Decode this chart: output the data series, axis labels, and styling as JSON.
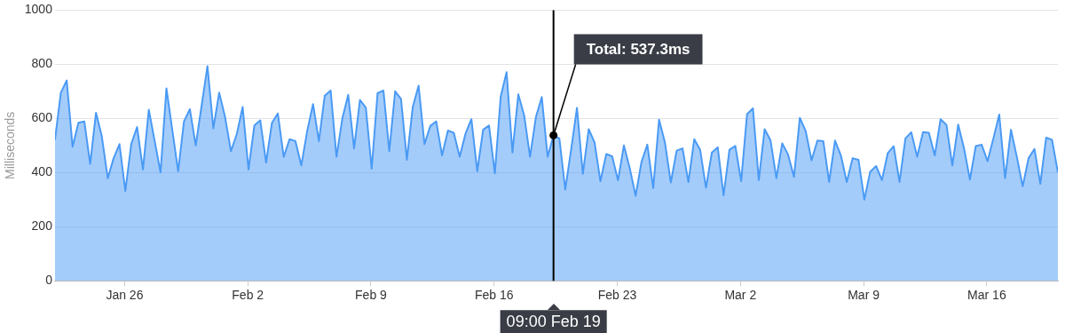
{
  "chart_data": {
    "type": "area",
    "ylabel": "Milliseconds",
    "ylim": [
      0,
      1000
    ],
    "yticks": [
      0,
      200,
      400,
      600,
      800,
      1000
    ],
    "xlim": [
      "--01-22T01:00",
      "--03-20T01:00"
    ],
    "xticks": [
      {
        "value": "--01-26",
        "label": "Jan 26"
      },
      {
        "value": "--02-02",
        "label": "Feb 2"
      },
      {
        "value": "--02-09",
        "label": "Feb 9"
      },
      {
        "value": "--02-16",
        "label": "Feb 16"
      },
      {
        "value": "--02-23",
        "label": "Feb 23"
      },
      {
        "value": "--03-02",
        "label": "Mar 2"
      },
      {
        "value": "--03-09",
        "label": "Mar 9"
      },
      {
        "value": "--03-16",
        "label": "Mar 16"
      }
    ],
    "grid": "y",
    "legend": false,
    "marker": "none",
    "ref_lines": [
      {
        "axis": "x",
        "value": "--02-19T09:00",
        "color": "#000000"
      }
    ],
    "annotations": [
      {
        "text": "Total: 537.3ms",
        "x": "--02-19T09:00",
        "y": 537.3
      },
      "09:00 Feb 19"
    ],
    "series": [
      {
        "color": "#4a9af5",
        "x": [
          "--01-22T01:00",
          "--01-22T09:00",
          "--01-22T17:00",
          "--01-23T01:00",
          "--01-23T09:00",
          "--01-23T17:00",
          "--01-24T01:00",
          "--01-24T09:00",
          "--01-24T17:00",
          "--01-25T01:00",
          "--01-25T09:00",
          "--01-25T17:00",
          "--01-26T01:00",
          "--01-26T09:00",
          "--01-26T17:00",
          "--01-27T01:00",
          "--01-27T09:00",
          "--01-27T17:00",
          "--01-28T01:00",
          "--01-28T09:00",
          "--01-28T17:00",
          "--01-29T01:00",
          "--01-29T09:00",
          "--01-29T17:00",
          "--01-30T01:00",
          "--01-30T09:00",
          "--01-30T17:00",
          "--01-31T01:00",
          "--01-31T09:00",
          "--01-31T17:00",
          "--02-01T01:00",
          "--02-01T09:00",
          "--02-01T17:00",
          "--02-02T01:00",
          "--02-02T09:00",
          "--02-02T17:00",
          "--02-03T01:00",
          "--02-03T09:00",
          "--02-03T17:00",
          "--02-04T01:00",
          "--02-04T09:00",
          "--02-04T17:00",
          "--02-05T01:00",
          "--02-05T09:00",
          "--02-05T17:00",
          "--02-06T01:00",
          "--02-06T09:00",
          "--02-06T17:00",
          "--02-07T01:00",
          "--02-07T09:00",
          "--02-07T17:00",
          "--02-08T01:00",
          "--02-08T09:00",
          "--02-08T17:00",
          "--02-09T01:00",
          "--02-09T09:00",
          "--02-09T17:00",
          "--02-10T01:00",
          "--02-10T09:00",
          "--02-10T17:00",
          "--02-11T01:00",
          "--02-11T09:00",
          "--02-11T17:00",
          "--02-12T01:00",
          "--02-12T09:00",
          "--02-12T17:00",
          "--02-13T01:00",
          "--02-13T09:00",
          "--02-13T17:00",
          "--02-14T01:00",
          "--02-14T09:00",
          "--02-14T17:00",
          "--02-15T01:00",
          "--02-15T09:00",
          "--02-15T17:00",
          "--02-16T01:00",
          "--02-16T09:00",
          "--02-16T17:00",
          "--02-17T01:00",
          "--02-17T09:00",
          "--02-17T17:00",
          "--02-18T01:00",
          "--02-18T09:00",
          "--02-18T17:00",
          "--02-19T01:00",
          "--02-19T09:00",
          "--02-19T17:00",
          "--02-20T01:00",
          "--02-20T09:00",
          "--02-20T17:00",
          "--02-21T01:00",
          "--02-21T09:00",
          "--02-21T17:00",
          "--02-22T01:00",
          "--02-22T09:00",
          "--02-22T17:00",
          "--02-23T01:00",
          "--02-23T09:00",
          "--02-23T17:00",
          "--02-24T01:00",
          "--02-24T09:00",
          "--02-24T17:00",
          "--02-25T01:00",
          "--02-25T09:00",
          "--02-25T17:00",
          "--02-26T01:00",
          "--02-26T09:00",
          "--02-26T17:00",
          "--02-27T01:00",
          "--02-27T09:00",
          "--02-27T17:00",
          "--02-28T01:00",
          "--02-28T09:00",
          "--02-28T17:00",
          "--03-01T01:00",
          "--03-01T09:00",
          "--03-01T17:00",
          "--03-02T01:00",
          "--03-02T09:00",
          "--03-02T17:00",
          "--03-03T01:00",
          "--03-03T09:00",
          "--03-03T17:00",
          "--03-04T01:00",
          "--03-04T09:00",
          "--03-04T17:00",
          "--03-05T01:00",
          "--03-05T09:00",
          "--03-05T17:00",
          "--03-06T01:00",
          "--03-06T09:00",
          "--03-06T17:00",
          "--03-07T01:00",
          "--03-07T09:00",
          "--03-07T17:00",
          "--03-08T01:00",
          "--03-08T09:00",
          "--03-08T17:00",
          "--03-09T01:00",
          "--03-09T09:00",
          "--03-09T17:00",
          "--03-10T01:00",
          "--03-10T09:00",
          "--03-10T17:00",
          "--03-11T01:00",
          "--03-11T09:00",
          "--03-11T17:00",
          "--03-12T01:00",
          "--03-12T09:00",
          "--03-12T17:00",
          "--03-13T01:00",
          "--03-13T09:00",
          "--03-13T17:00",
          "--03-14T01:00",
          "--03-14T09:00",
          "--03-14T17:00",
          "--03-15T01:00",
          "--03-15T09:00",
          "--03-15T17:00",
          "--03-16T01:00",
          "--03-16T09:00",
          "--03-16T17:00",
          "--03-17T01:00",
          "--03-17T09:00",
          "--03-17T17:00",
          "--03-18T01:00",
          "--03-18T09:00",
          "--03-18T17:00",
          "--03-19T01:00",
          "--03-19T09:00",
          "--03-19T17:00",
          "--03-20T01:00"
        ],
        "values": [
          521,
          695,
          740,
          495,
          584,
          589,
          432,
          621,
          532,
          379,
          453,
          505,
          332,
          505,
          568,
          411,
          632,
          516,
          400,
          711,
          558,
          405,
          589,
          634,
          500,
          647,
          793,
          563,
          695,
          605,
          479,
          542,
          642,
          411,
          574,
          593,
          437,
          584,
          618,
          458,
          523,
          516,
          426,
          553,
          653,
          516,
          684,
          703,
          458,
          600,
          687,
          489,
          668,
          640,
          414,
          693,
          703,
          479,
          700,
          672,
          447,
          642,
          721,
          505,
          572,
          589,
          463,
          555,
          547,
          458,
          544,
          597,
          405,
          558,
          574,
          397,
          681,
          771,
          474,
          689,
          611,
          458,
          605,
          679,
          458,
          537.3,
          526,
          337,
          484,
          639,
          395,
          560,
          511,
          368,
          468,
          460,
          371,
          500,
          416,
          314,
          439,
          503,
          342,
          595,
          511,
          363,
          481,
          489,
          365,
          523,
          484,
          344,
          474,
          493,
          316,
          484,
          498,
          368,
          616,
          637,
          372,
          560,
          519,
          379,
          508,
          466,
          384,
          602,
          553,
          445,
          518,
          516,
          365,
          518,
          463,
          365,
          453,
          447,
          300,
          403,
          424,
          372,
          472,
          497,
          365,
          526,
          549,
          458,
          549,
          547,
          463,
          597,
          576,
          426,
          577,
          489,
          374,
          498,
          503,
          442,
          526,
          614,
          379,
          558,
          458,
          349,
          453,
          487,
          358,
          529,
          521,
          400
        ]
      }
    ]
  }
}
